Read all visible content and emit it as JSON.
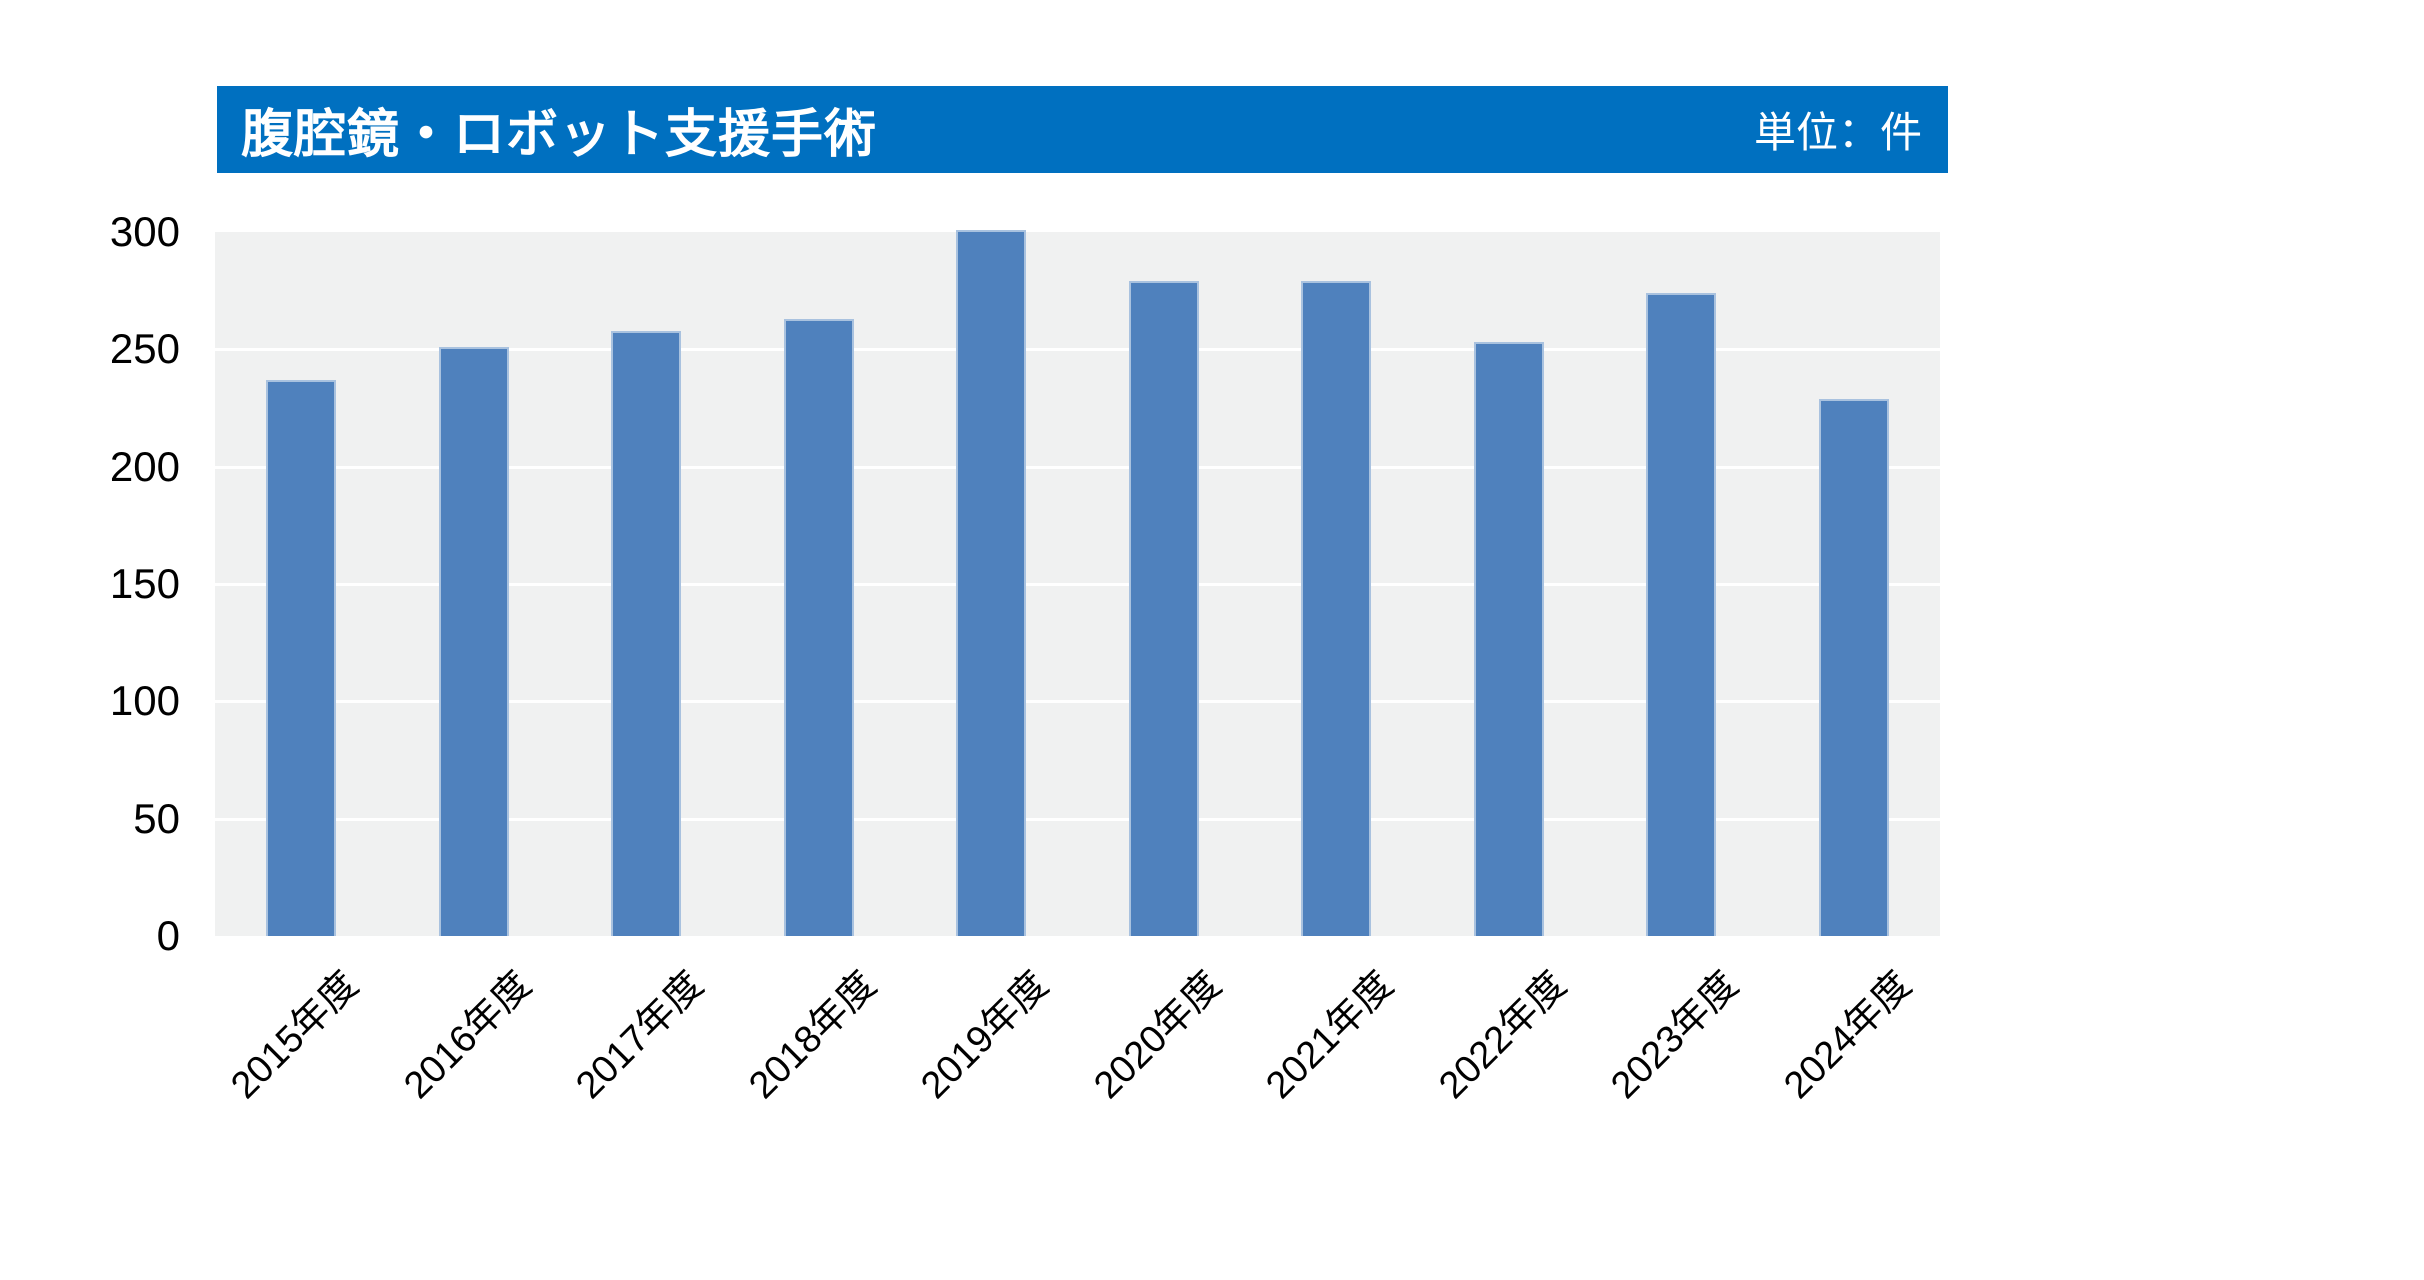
{
  "header": {
    "title": "腹腔鏡・ロボット支援手術",
    "unit_label": "単位：件"
  },
  "chart_data": {
    "type": "bar",
    "title": "腹腔鏡・ロボット支援手術",
    "unit": "件",
    "categories": [
      "2015年度",
      "2016年度",
      "2017年度",
      "2018年度",
      "2019年度",
      "2020年度",
      "2021年度",
      "2022年度",
      "2023年度",
      "2024年度"
    ],
    "values": [
      237,
      251,
      258,
      263,
      301,
      279,
      279,
      253,
      274,
      229
    ],
    "xlabel": "",
    "ylabel": "",
    "ylim": [
      0,
      300
    ],
    "yticks": [
      0,
      50,
      100,
      150,
      200,
      250,
      300
    ],
    "grid": true,
    "legend": false,
    "colors": {
      "bar_fill": "#4f81bd",
      "bar_border": "#a9c2df",
      "header_bg": "#0070c0",
      "header_text": "#ffffff",
      "plot_bg": "#f0f1f1",
      "gridline": "#ffffff",
      "axis_text": "#000000"
    }
  }
}
